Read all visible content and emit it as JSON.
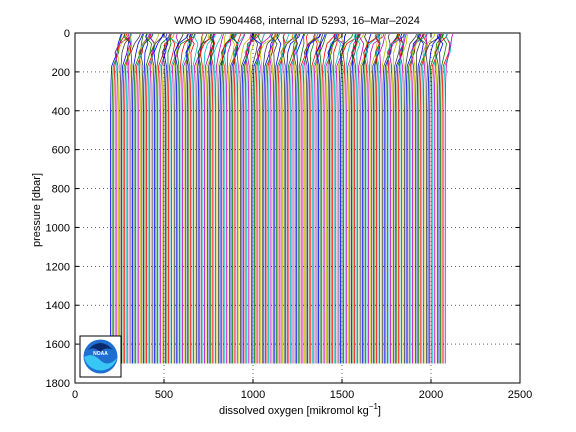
{
  "chart_data": {
    "type": "line",
    "title": "WMO ID 5904468, internal ID 5293, 16–Mar–2024",
    "xlabel_main": "dissolved oxygen [mikromol kg",
    "xlabel_sup": "−1",
    "xlabel_close": "]",
    "ylabel": "pressure [dbar]",
    "xlim": [
      0,
      2500
    ],
    "ylim": [
      0,
      1800
    ],
    "y_reversed": true,
    "grid": true,
    "legend": "none",
    "x_ticks": [
      0,
      500,
      1000,
      1500,
      2000,
      2500
    ],
    "y_ticks": [
      0,
      200,
      400,
      600,
      800,
      1000,
      1200,
      1400,
      1600,
      1800
    ],
    "series_template": {
      "description": "waterfall of offset oxygen profiles",
      "count": 215,
      "first_deep_x": 200,
      "last_deep_x": 2080,
      "bottom_pressure": 1700,
      "top_pressure": 5
    },
    "colors": [
      "#0000ff",
      "#008000",
      "#ff0000",
      "#00bfbf",
      "#bf00bf",
      "#bfbf00",
      "#404040"
    ]
  },
  "logo": {
    "name": "NOAA",
    "text": "NOAA"
  }
}
